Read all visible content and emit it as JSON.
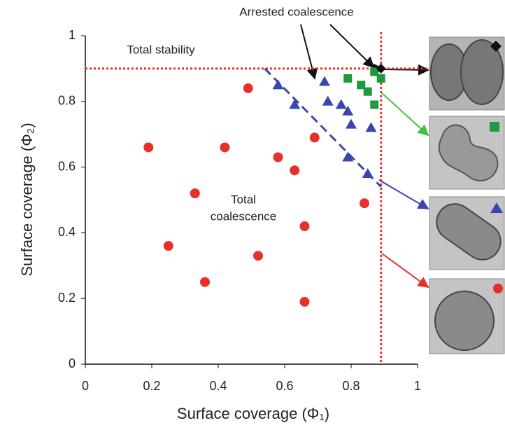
{
  "chart_data": {
    "type": "scatter",
    "xlabel": "Surface coverage (Φ₁)",
    "ylabel": "Surface coverage (Φ₂)",
    "xlim": [
      0,
      1
    ],
    "ylim": [
      0,
      1
    ],
    "xticks": [
      0,
      0.2,
      0.4,
      0.6,
      0.8,
      1
    ],
    "yticks": [
      0,
      0.2,
      0.4,
      0.6,
      0.8,
      1
    ],
    "grid": false,
    "series": [
      {
        "marker": "circle",
        "color": "#e8302a",
        "x": [
          0.19,
          0.49,
          0.42,
          0.69,
          0.58,
          0.63,
          0.33,
          0.84,
          0.66,
          0.25,
          0.52,
          0.36,
          0.66
        ],
        "y": [
          0.66,
          0.84,
          0.66,
          0.69,
          0.63,
          0.59,
          0.52,
          0.49,
          0.42,
          0.36,
          0.33,
          0.25,
          0.19
        ]
      },
      {
        "marker": "triangle",
        "color": "#3a46b0",
        "x": [
          0.58,
          0.72,
          0.63,
          0.73,
          0.77,
          0.79,
          0.8,
          0.86,
          0.79,
          0.85
        ],
        "y": [
          0.85,
          0.86,
          0.79,
          0.8,
          0.79,
          0.77,
          0.73,
          0.72,
          0.63,
          0.58
        ]
      },
      {
        "marker": "square",
        "color": "#1e9a3c",
        "x": [
          0.79,
          0.83,
          0.85,
          0.87,
          0.87,
          0.89
        ],
        "y": [
          0.87,
          0.85,
          0.83,
          0.89,
          0.79,
          0.87
        ]
      },
      {
        "marker": "diamond",
        "color": "#111111",
        "x": [
          0.89
        ],
        "y": [
          0.9
        ]
      }
    ],
    "hline": {
      "value": 0.9,
      "color": "#e8302a"
    },
    "vline": {
      "value": 0.89,
      "color": "#e8302a"
    },
    "boundary": {
      "color": "#3a46b0",
      "x": [
        0.54,
        0.89
      ],
      "y": [
        0.9,
        0.54
      ]
    },
    "annotations": {
      "total_stability": "Total stability",
      "arrested_coalescence": "Arrested coalescence",
      "total_coalescence": [
        "Total",
        "coalescence"
      ]
    }
  }
}
